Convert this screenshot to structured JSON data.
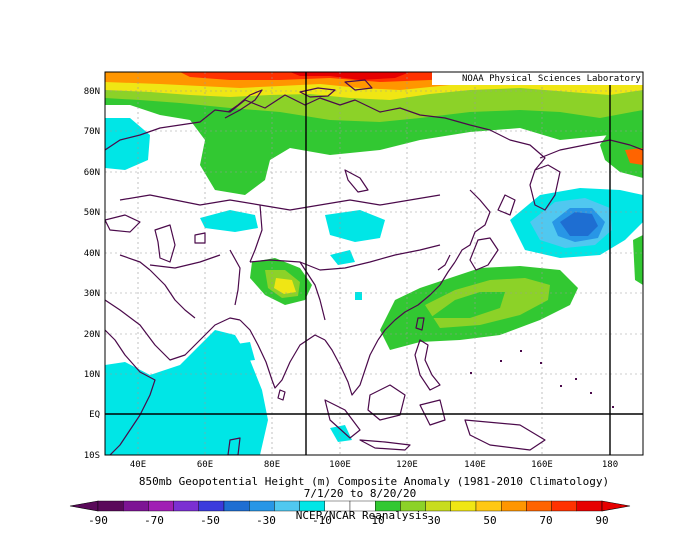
{
  "map": {
    "attribution": "NOAA Physical Sciences Laboratory",
    "lat_labels": [
      "80N",
      "70N",
      "60N",
      "50N",
      "40N",
      "30N",
      "20N",
      "10N",
      "EQ",
      "10S"
    ],
    "lon_labels": [
      "40E",
      "60E",
      "80E",
      "100E",
      "120E",
      "140E",
      "160E",
      "180"
    ],
    "colors": {
      "coast": "#4b0a4b",
      "frame": "#000000",
      "grid": "#9a9a9a"
    }
  },
  "caption": {
    "line1": "850mb Geopotential Height (m) Composite Anomaly (1981-2010 Climatology)",
    "line2": "7/1/20  to 8/20/20",
    "line3": "NCEP/NCAR Reanalysis"
  },
  "colorbar": {
    "labels": [
      "-90",
      "-70",
      "-50",
      "-30",
      "-10",
      "10",
      "30",
      "50",
      "70",
      "90"
    ],
    "colors": [
      "#5a0a5a",
      "#7d1494",
      "#a01fb4",
      "#7b30d2",
      "#3b3bdc",
      "#1e6ed2",
      "#2896e6",
      "#50c8f0",
      "#00e6e6",
      "#ffffff",
      "#ffffff",
      "#32c832",
      "#8cd228",
      "#c8dc1e",
      "#f0e614",
      "#ffc814",
      "#ff9600",
      "#ff6400",
      "#ff3200",
      "#e60000"
    ]
  },
  "chart_data": {
    "type": "heatmap",
    "title": "850mb Geopotential Height (m) Composite Anomaly (1981-2010 Climatology)",
    "subtitle": "7/1/20 to 8/20/20",
    "source": "NCEP/NCAR Reanalysis",
    "xlim": [
      30,
      190
    ],
    "ylim": [
      -10,
      85
    ],
    "x_ticks": [
      "40E",
      "60E",
      "80E",
      "100E",
      "120E",
      "140E",
      "160E",
      "180"
    ],
    "y_ticks": [
      "80N",
      "70N",
      "60N",
      "50N",
      "40N",
      "30N",
      "20N",
      "10N",
      "EQ",
      "10S"
    ],
    "color_levels": [
      -90,
      -70,
      -50,
      -30,
      -10,
      10,
      30,
      50,
      70,
      90
    ],
    "features": [
      {
        "name": "Arctic positive anomaly",
        "lon": [
          30,
          190
        ],
        "lat": [
          72,
          85
        ],
        "max": 90
      },
      {
        "name": "Negative center NW Pacific",
        "lon": [
          170,
          172
        ],
        "lat": [
          48,
          49
        ],
        "min": -50
      },
      {
        "name": "Positive anomaly over Tibetan Plateau",
        "lon": [
          85,
          86
        ],
        "lat": [
          32,
          33
        ],
        "max": 30
      },
      {
        "name": "Positive anomaly East China / W Pacific",
        "lon": [
          105,
          165
        ],
        "lat": [
          18,
          38
        ],
        "max": 30
      },
      {
        "name": "Negative anomaly Indian Ocean",
        "lon": [
          30,
          80
        ],
        "lat": [
          -10,
          20
        ],
        "min": -10
      }
    ]
  }
}
